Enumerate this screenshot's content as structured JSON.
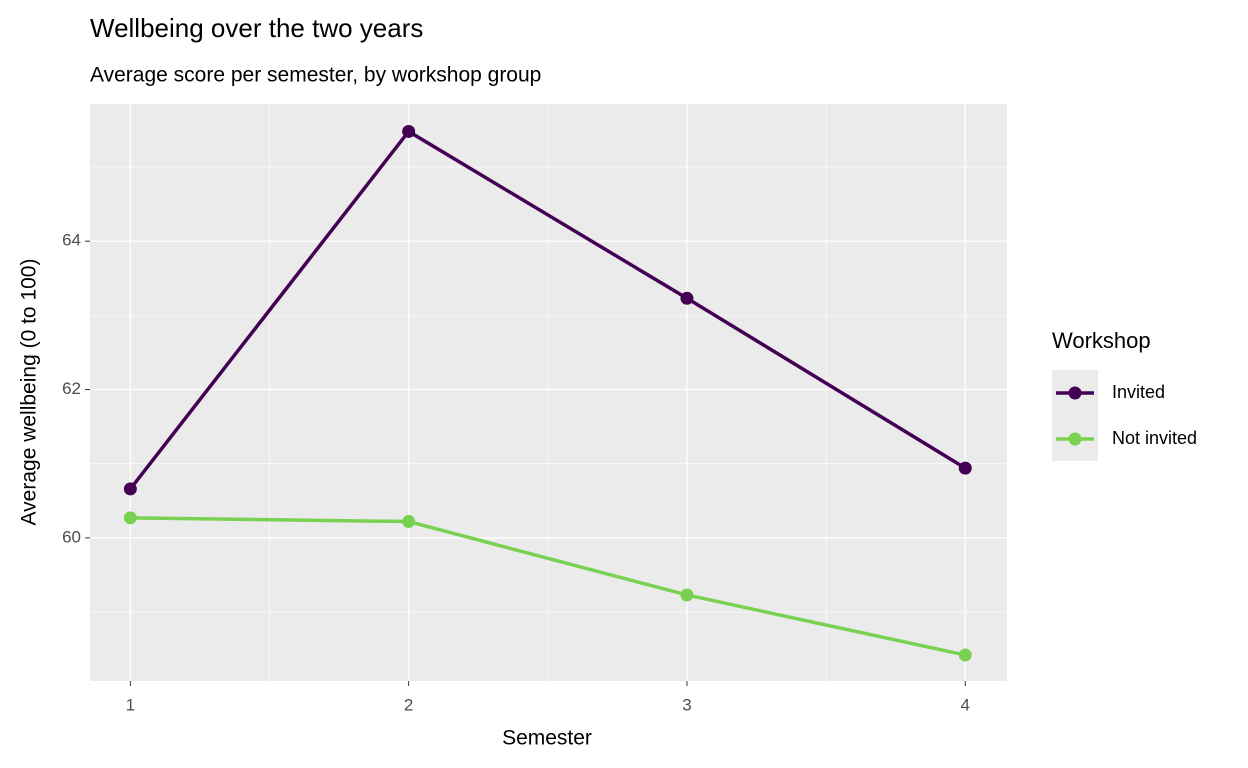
{
  "chart_data": {
    "type": "line",
    "title": "Wellbeing over the two years",
    "subtitle": "Average score per semester, by workshop group",
    "x_label": "Semester",
    "y_label": "Average wellbeing (0 to 100)",
    "x": [
      1,
      2,
      3,
      4
    ],
    "xlim": [
      0.855,
      4.15
    ],
    "xticks": [
      1,
      2,
      3,
      4
    ],
    "ylim": [
      58.07,
      65.85
    ],
    "yticks": [
      60,
      62,
      64
    ],
    "grid": true,
    "legend_title": "Workshop",
    "legend_position": "right",
    "series": [
      {
        "name": "Invited",
        "color": "#440154",
        "values": [
          60.66,
          65.48,
          63.23,
          60.94
        ]
      },
      {
        "name": "Not invited",
        "color": "#7AD151",
        "values": [
          60.27,
          60.22,
          59.23,
          58.42
        ]
      }
    ]
  }
}
